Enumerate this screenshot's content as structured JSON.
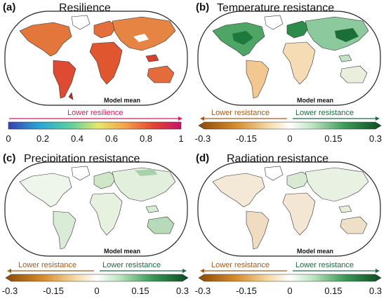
{
  "panels": {
    "a": {
      "label": "(a)",
      "title": "Resilience",
      "map_note": "Model mean",
      "bar_annotation": "Lower resilience",
      "ticks": [
        "0",
        "0.2",
        "0.4",
        "0.6",
        "0.8",
        "1"
      ],
      "colormap": [
        "#3a3fb0",
        "#2aa6d6",
        "#5ccf9e",
        "#e8e86a",
        "#f3a04a",
        "#e3452f",
        "#c8126a"
      ]
    },
    "b": {
      "label": "(b)",
      "title": "Temperature resistance",
      "map_note": "Model mean",
      "left_annotation": "Lower resistance",
      "right_annotation": "Lower resistance",
      "ticks": [
        "-0.3",
        "-0.15",
        "0",
        "0.15",
        "0.3"
      ],
      "colormap": [
        "#8a4a08",
        "#d58a2a",
        "#f3d9a4",
        "#ffffff",
        "#bfe6c4",
        "#3d9a58",
        "#0b4a22"
      ]
    },
    "c": {
      "label": "(c)",
      "title": "Precipitation resistance",
      "map_note": "Model mean",
      "left_annotation": "Lower resistance",
      "right_annotation": "Lower resistance",
      "ticks": [
        "-0.3",
        "-0.15",
        "0",
        "0.15",
        "0.3"
      ],
      "colormap": [
        "#8a4a08",
        "#d58a2a",
        "#f3d9a4",
        "#ffffff",
        "#bfe6c4",
        "#3d9a58",
        "#0b4a22"
      ]
    },
    "d": {
      "label": "(d)",
      "title": "Radiation resistance",
      "map_note": "Model mean",
      "left_annotation": "Lower resistance",
      "right_annotation": "Lower resistance",
      "ticks": [
        "-0.3",
        "-0.15",
        "0",
        "0.15",
        "0.3"
      ],
      "colormap": [
        "#8a4a08",
        "#d58a2a",
        "#f3d9a4",
        "#ffffff",
        "#bfe6c4",
        "#3d9a58",
        "#0b4a22"
      ]
    }
  },
  "colors": {
    "resilience_arrow": "#d21f5f",
    "negative_arrow": "#a45c1c",
    "positive_arrow": "#1f6a44"
  }
}
